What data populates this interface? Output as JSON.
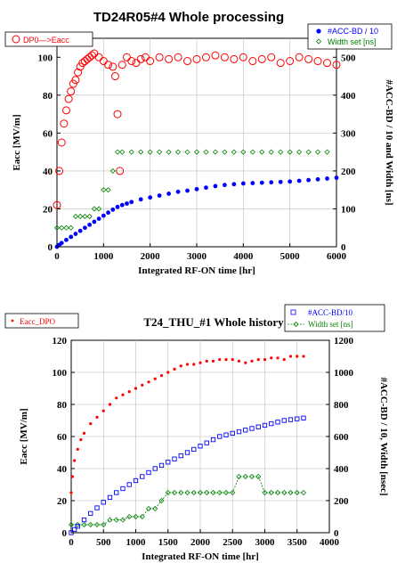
{
  "colors": {
    "eacc": "#ff0000",
    "acc": "#0000ff",
    "width": "#008000",
    "frame": "#000000",
    "grid": "#bdbdbd"
  },
  "chart_data": [
    {
      "type": "scatter",
      "title": "TD24R05#4 Whole processing",
      "xlabel": "Integrated RF-ON time  [hr]",
      "ylabel": "Eacc [MV/m]",
      "y2label": "#ACC-BD / 10 and Width [ns]",
      "xlim": [
        0,
        6000
      ],
      "ylim": [
        0,
        110
      ],
      "y2lim": [
        0,
        550
      ],
      "xticks": [
        "0",
        "1000",
        "2000",
        "3000",
        "4000",
        "5000",
        "6000"
      ],
      "yticks": [
        "0",
        "20",
        "40",
        "60",
        "80",
        "100"
      ],
      "y2ticks": [
        "0",
        "100",
        "200",
        "300",
        "400",
        "500"
      ],
      "grid": true,
      "legend": {
        "left": "DP0—>Eacc",
        "right1": "#ACC-BD / 10",
        "right2": "Width set [ns]"
      },
      "series": [
        {
          "name": "DP0—>Eacc",
          "axis": "left",
          "marker": "open-circle",
          "x": [
            0,
            50,
            100,
            150,
            200,
            250,
            300,
            350,
            400,
            450,
            500,
            550,
            600,
            650,
            700,
            750,
            800,
            900,
            1000,
            1100,
            1200,
            1250,
            1300,
            1350,
            1400,
            1500,
            1600,
            1700,
            1800,
            1900,
            2000,
            2200,
            2400,
            2600,
            2800,
            3000,
            3200,
            3400,
            3600,
            3800,
            4000,
            4200,
            4400,
            4600,
            4800,
            5000,
            5200,
            5400,
            5600,
            5800,
            6000
          ],
          "y": [
            22,
            40,
            55,
            65,
            72,
            78,
            82,
            86,
            88,
            92,
            95,
            97,
            98,
            99,
            100,
            101,
            102,
            100,
            98,
            96,
            95,
            90,
            70,
            40,
            96,
            100,
            98,
            97,
            99,
            100,
            98,
            100,
            99,
            100,
            98,
            99,
            100,
            101,
            100,
            99,
            100,
            98,
            99,
            100,
            97,
            98,
            100,
            99,
            98,
            97,
            96
          ]
        },
        {
          "name": "#ACC-BD / 10",
          "axis": "right",
          "marker": "filled-circle",
          "x": [
            0,
            50,
            100,
            200,
            300,
            400,
            500,
            600,
            700,
            800,
            900,
            1000,
            1100,
            1200,
            1300,
            1400,
            1500,
            1600,
            1800,
            2000,
            2200,
            2400,
            2600,
            2800,
            3000,
            3200,
            3400,
            3600,
            3800,
            4000,
            4200,
            4400,
            4600,
            4800,
            5000,
            5200,
            5400,
            5600,
            5800,
            6000
          ],
          "y": [
            0,
            5,
            10,
            18,
            26,
            34,
            42,
            50,
            58,
            66,
            74,
            82,
            90,
            98,
            105,
            110,
            114,
            118,
            125,
            130,
            135,
            140,
            145,
            148,
            152,
            156,
            160,
            163,
            165,
            167,
            168,
            169,
            170,
            171,
            172,
            174,
            176,
            178,
            180,
            182
          ]
        },
        {
          "name": "Width set [ns]",
          "axis": "right",
          "marker": "open-diamond",
          "x": [
            0,
            100,
            200,
            300,
            400,
            500,
            600,
            700,
            800,
            900,
            1000,
            1100,
            1200,
            1300,
            1400,
            1600,
            1800,
            2000,
            2200,
            2400,
            2600,
            2800,
            3000,
            3200,
            3400,
            3600,
            3800,
            4000,
            4200,
            4400,
            4600,
            4800,
            5000,
            5200,
            5400,
            5600,
            5800
          ],
          "y": [
            50,
            50,
            50,
            50,
            80,
            80,
            80,
            80,
            100,
            100,
            150,
            150,
            200,
            250,
            250,
            250,
            250,
            250,
            250,
            250,
            250,
            250,
            250,
            250,
            250,
            250,
            250,
            250,
            250,
            250,
            250,
            250,
            250,
            250,
            250,
            250,
            250
          ]
        }
      ]
    },
    {
      "type": "scatter",
      "title": "T24_THU_#1  Whole history",
      "xlabel": "Integrated RF-ON time [hr]",
      "ylabel": "Eacc [MV/m]",
      "y2label": "#ACC-BD / 10, Width [nsec]",
      "xlim": [
        0,
        4000
      ],
      "ylim": [
        0,
        120
      ],
      "y2lim": [
        0,
        1200
      ],
      "xticks": [
        "0",
        "500",
        "1000",
        "1500",
        "2000",
        "2500",
        "3000",
        "3500",
        "4000"
      ],
      "yticks": [
        "0",
        "20",
        "40",
        "60",
        "80",
        "100",
        "120"
      ],
      "y2ticks": [
        "0",
        "200",
        "400",
        "600",
        "800",
        "1000",
        "1200"
      ],
      "grid": true,
      "legend": {
        "left": "Eacc_DPO",
        "right1": "#ACC-BD/10",
        "right2": "Width set [ns]"
      },
      "series": [
        {
          "name": "Eacc_DPO",
          "axis": "left",
          "marker": "small-dot",
          "x": [
            0,
            20,
            50,
            100,
            150,
            200,
            300,
            400,
            500,
            600,
            700,
            800,
            900,
            1000,
            1100,
            1200,
            1300,
            1400,
            1500,
            1600,
            1700,
            1800,
            1900,
            2000,
            2100,
            2200,
            2300,
            2400,
            2500,
            2600,
            2700,
            2800,
            2900,
            3000,
            3100,
            3200,
            3300,
            3400,
            3500,
            3600
          ],
          "y": [
            25,
            35,
            45,
            52,
            58,
            62,
            68,
            72,
            76,
            80,
            84,
            86,
            88,
            90,
            92,
            94,
            96,
            98,
            100,
            102,
            104,
            105,
            105,
            106,
            107,
            107,
            108,
            108,
            108,
            107,
            106,
            107,
            108,
            108,
            109,
            109,
            108,
            110,
            110,
            110
          ]
        },
        {
          "name": "#ACC-BD/10",
          "axis": "right",
          "marker": "open-square",
          "x": [
            0,
            50,
            100,
            200,
            300,
            400,
            500,
            600,
            700,
            800,
            900,
            1000,
            1100,
            1200,
            1300,
            1400,
            1500,
            1600,
            1700,
            1800,
            1900,
            2000,
            2100,
            2200,
            2300,
            2400,
            2500,
            2600,
            2700,
            2800,
            2900,
            3000,
            3100,
            3200,
            3300,
            3400,
            3500,
            3600
          ],
          "y": [
            0,
            20,
            40,
            80,
            120,
            155,
            190,
            220,
            250,
            275,
            300,
            325,
            350,
            375,
            400,
            420,
            440,
            460,
            480,
            500,
            520,
            540,
            560,
            580,
            600,
            610,
            620,
            630,
            640,
            650,
            660,
            670,
            680,
            690,
            700,
            705,
            710,
            715
          ]
        },
        {
          "name": "Width set [ns]",
          "axis": "right",
          "marker": "open-diamond",
          "x": [
            0,
            100,
            200,
            300,
            400,
            500,
            600,
            700,
            800,
            900,
            1000,
            1100,
            1200,
            1300,
            1400,
            1500,
            1600,
            1700,
            1800,
            1900,
            2000,
            2100,
            2200,
            2300,
            2400,
            2500,
            2600,
            2700,
            2800,
            2900,
            3000,
            3100,
            3200,
            3300,
            3400,
            3500,
            3600
          ],
          "y": [
            50,
            50,
            50,
            50,
            50,
            50,
            80,
            80,
            80,
            100,
            100,
            100,
            150,
            150,
            200,
            250,
            250,
            250,
            250,
            250,
            250,
            250,
            250,
            250,
            250,
            250,
            350,
            350,
            350,
            350,
            250,
            250,
            250,
            250,
            250,
            250,
            250
          ]
        }
      ]
    }
  ]
}
